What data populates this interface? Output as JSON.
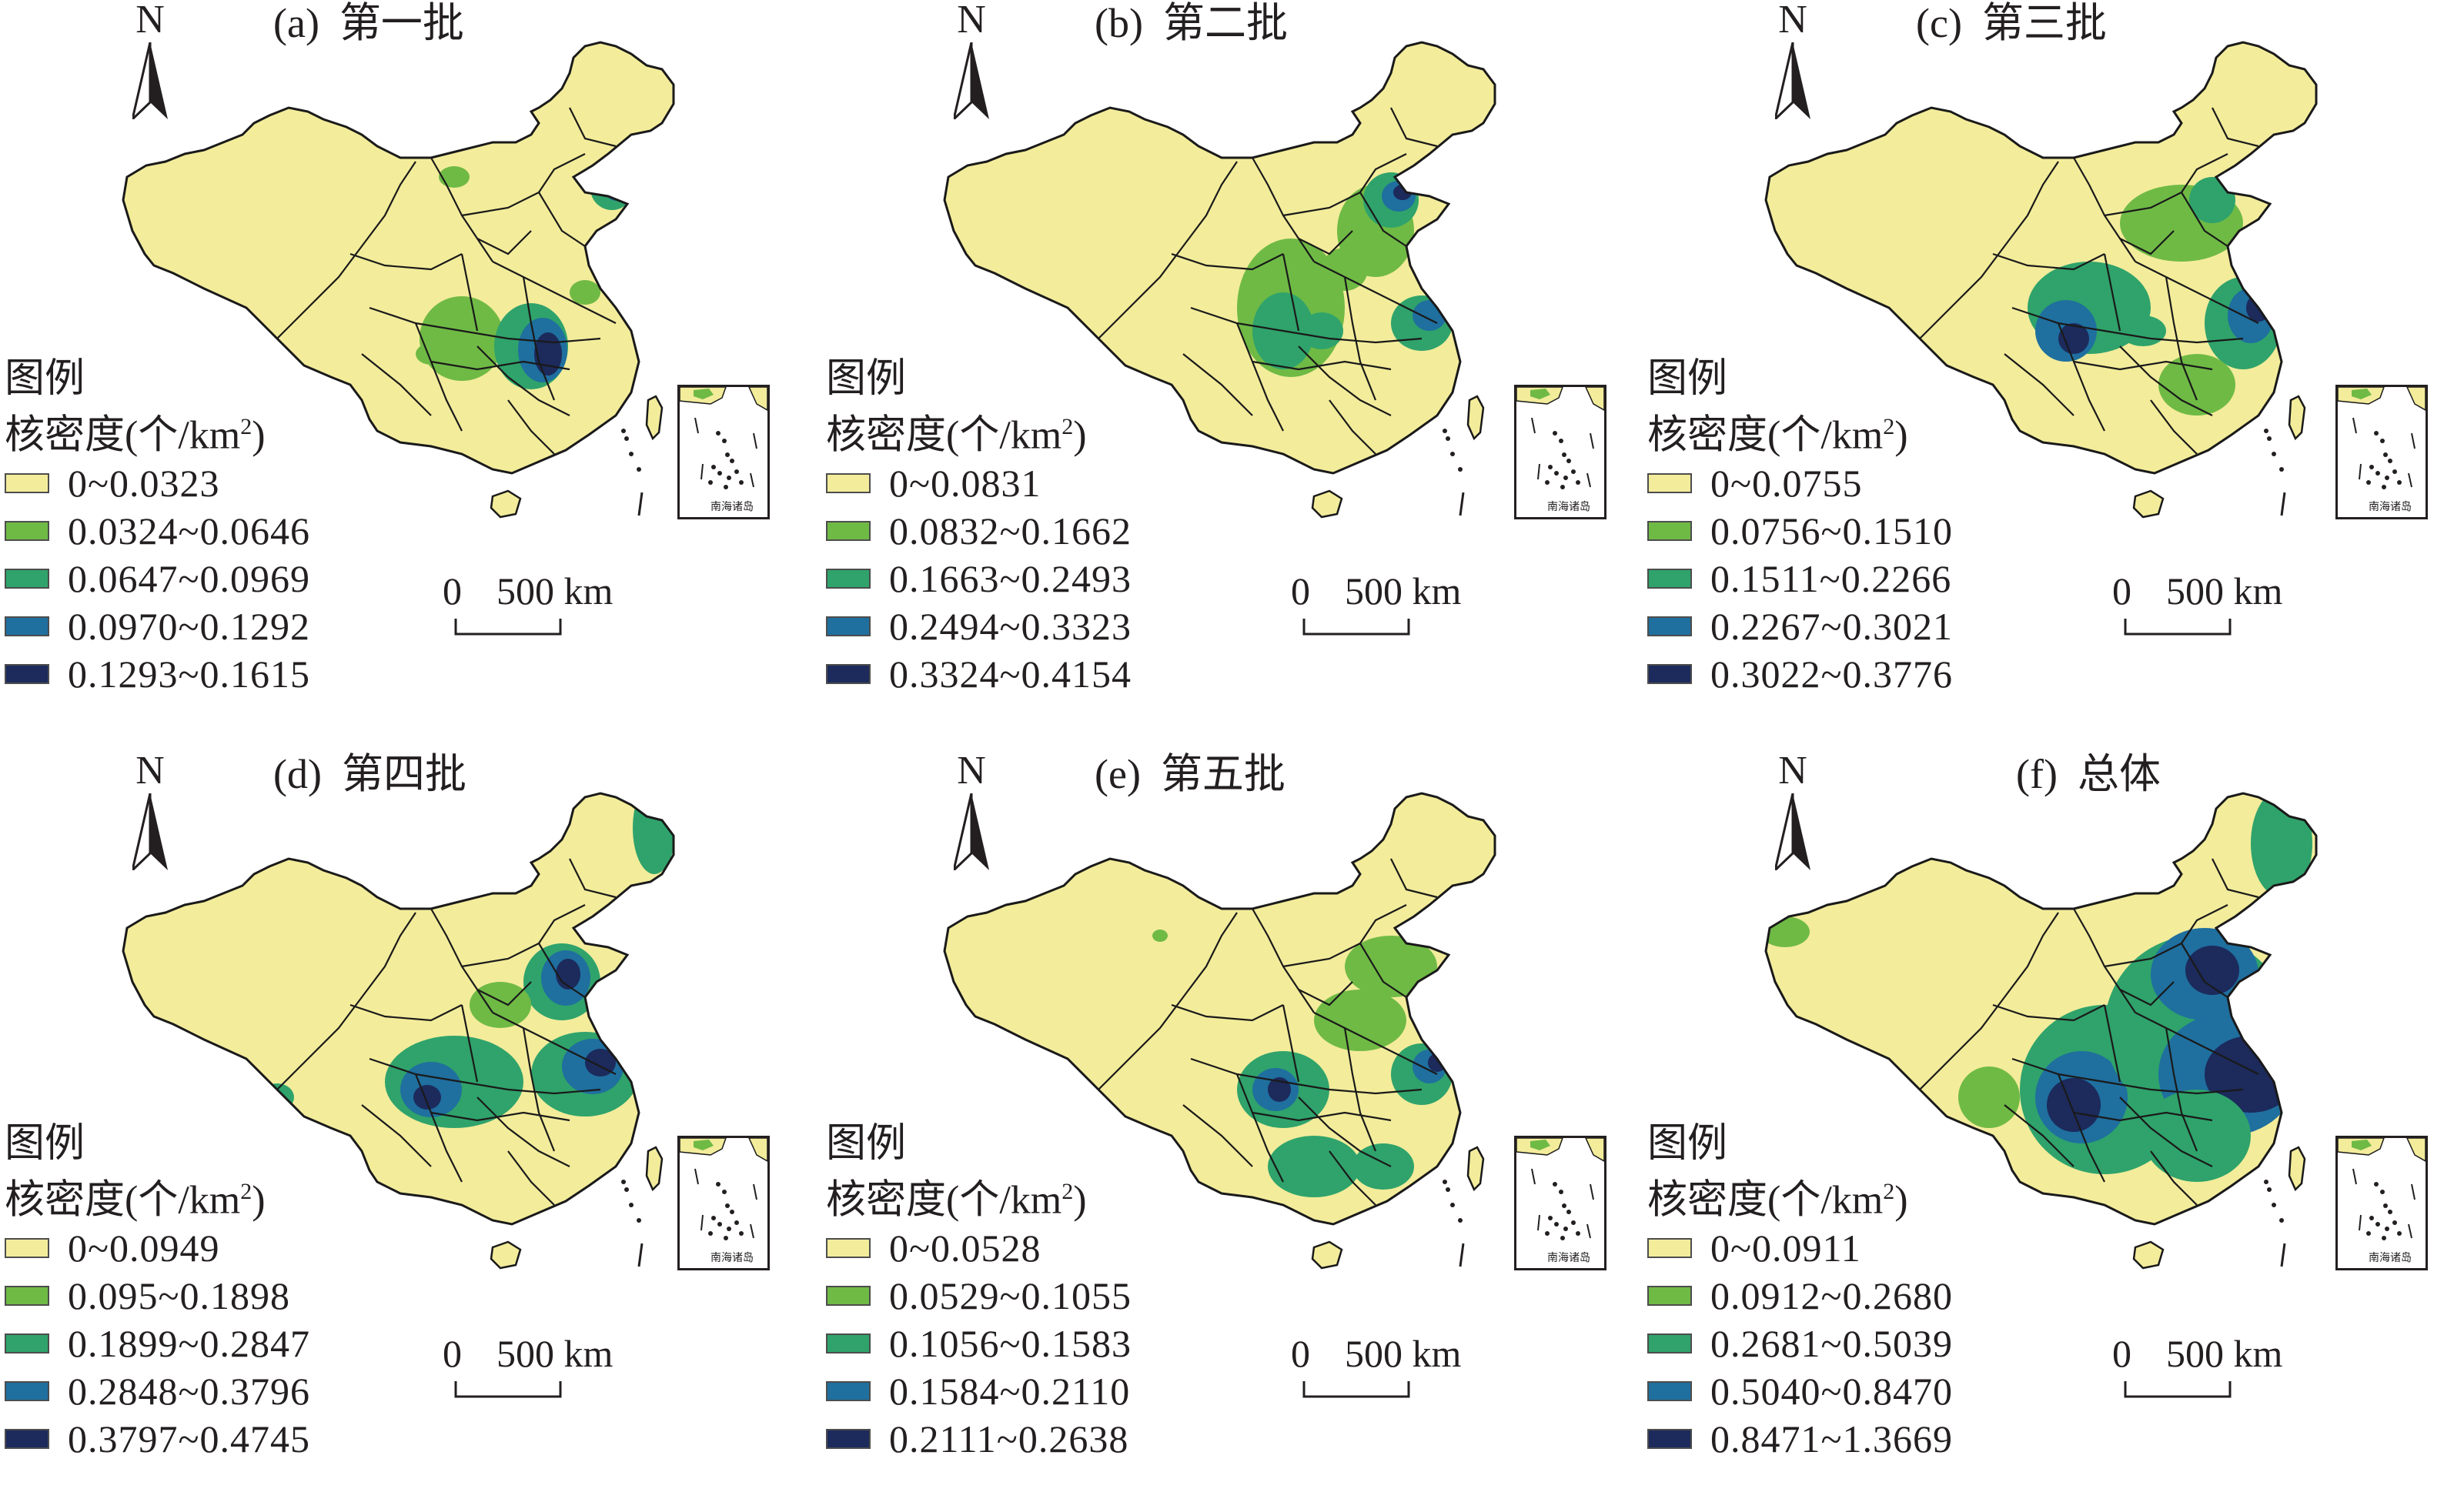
{
  "north_letter": "N",
  "scale": {
    "zero": "0",
    "distance": "500 km"
  },
  "inset_label": "南海诸岛",
  "legend_title": "图例",
  "legend_subtitle": "核密度(个/km",
  "legend_subtitle_sup": "2",
  "legend_subtitle_close": ")",
  "colors": {
    "c1": "#f3ec9b",
    "c2": "#6fba45",
    "c3": "#2fa36b",
    "c4": "#1f6f9f",
    "c5": "#1c2a5c",
    "border": "#1a1a1a"
  },
  "panels": [
    {
      "label": "(a)",
      "title": "第一批",
      "ranges": [
        "0~0.0323",
        "0.0324~0.0646",
        "0.0647~0.0969",
        "0.0970~0.1292",
        "0.1293~0.1615"
      ]
    },
    {
      "label": "(b)",
      "title": "第二批",
      "ranges": [
        "0~0.0831",
        "0.0832~0.1662",
        "0.1663~0.2493",
        "0.2494~0.3323",
        "0.3324~0.4154"
      ]
    },
    {
      "label": "(c)",
      "title": "第三批",
      "ranges": [
        "0~0.0755",
        "0.0756~0.1510",
        "0.1511~0.2266",
        "0.2267~0.3021",
        "0.3022~0.3776"
      ]
    },
    {
      "label": "(d)",
      "title": "第四批",
      "ranges": [
        "0~0.0949",
        "0.095~0.1898",
        "0.1899~0.2847",
        "0.2848~0.3796",
        "0.3797~0.4745"
      ]
    },
    {
      "label": "(e)",
      "title": "第五批",
      "ranges": [
        "0~0.0528",
        "0.0529~0.1055",
        "0.1056~0.1583",
        "0.1584~0.2110",
        "0.2111~0.2638"
      ]
    },
    {
      "label": "(f)",
      "title": "总体",
      "ranges": [
        "0~0.0911",
        "0.0912~0.2680",
        "0.2681~0.5039",
        "0.5040~0.8470",
        "0.8471~1.3669"
      ]
    }
  ]
}
